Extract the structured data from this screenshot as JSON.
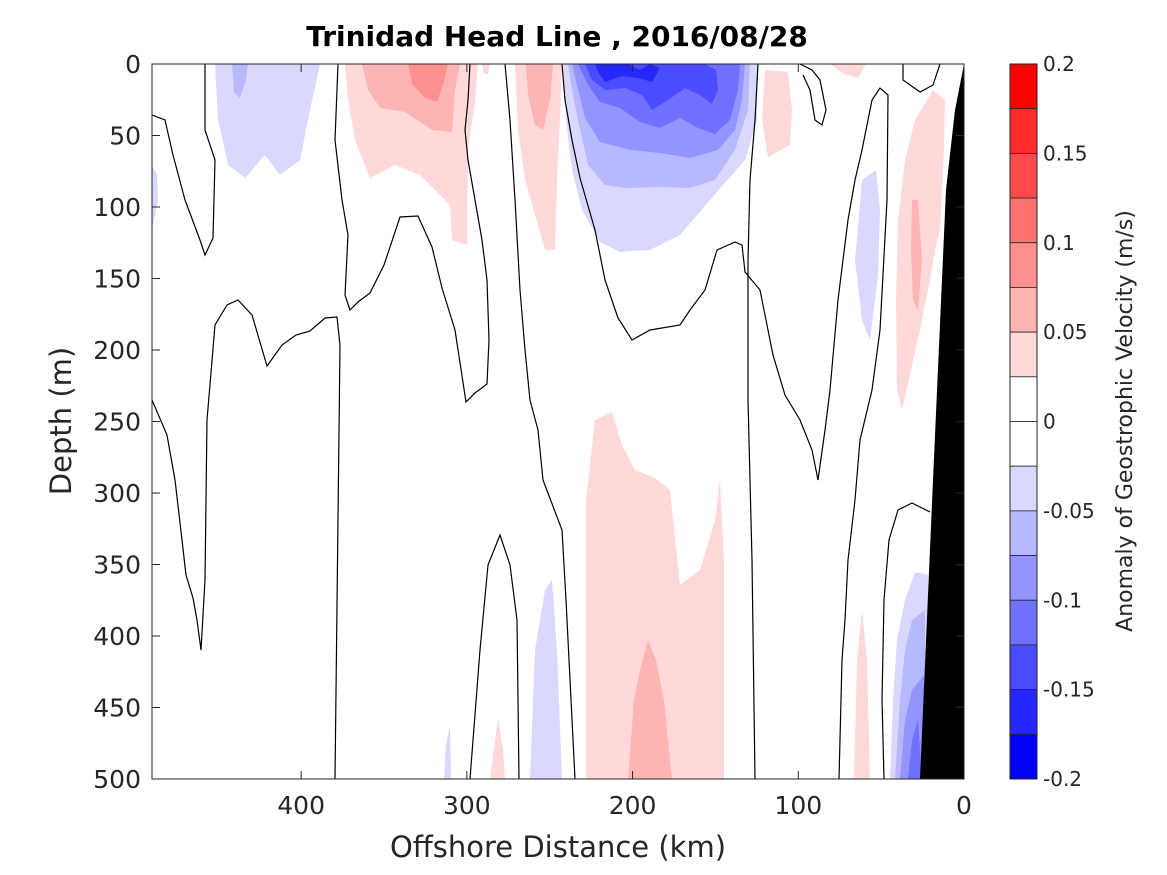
{
  "chart_data": {
    "type": "filled-contour",
    "title": "Trinidad Head Line , 2016/08/28",
    "xlabel": "Offshore Distance (km)",
    "ylabel": "Depth (m)",
    "xlim": [
      490,
      0
    ],
    "ylim": [
      0,
      500
    ],
    "x_reversed": true,
    "y_reversed": true,
    "xticks": [
      400,
      300,
      200,
      100,
      0
    ],
    "yticks": [
      0,
      50,
      100,
      150,
      200,
      250,
      300,
      350,
      400,
      450,
      500
    ],
    "colorbar": {
      "label": "Anomaly of Geostrophic Velocity (m/s)",
      "ticks": [
        0.2,
        0.15,
        0.1,
        0.05,
        0,
        -0.05,
        -0.1,
        -0.15,
        -0.2
      ],
      "tick_labels": [
        "0.2",
        "0.15",
        "0.1",
        "0.05",
        "0",
        "-0.05",
        "-0.1",
        "-0.15",
        "-0.2"
      ],
      "levels": [
        0.2,
        0.175,
        0.15,
        0.125,
        0.1,
        0.075,
        0.05,
        0.025,
        0,
        -0.025,
        -0.05,
        -0.075,
        -0.1,
        -0.125,
        -0.15,
        -0.175,
        -0.2
      ],
      "colors": [
        "#ff0000",
        "#ff2b2b",
        "#ff4b4b",
        "#ff7070",
        "#ff9090",
        "#ffb4b4",
        "#ffd9d9",
        "#ffffff",
        "#ffffff",
        "#d9d9ff",
        "#b8b8ff",
        "#9494ff",
        "#7070ff",
        "#4b4bff",
        "#2626ff",
        "#0000ff"
      ]
    },
    "features": [
      {
        "name": "surface negative core",
        "x_range": [
          240,
          140
        ],
        "depth_range": [
          0,
          130
        ],
        "min_value": -0.15
      },
      {
        "name": "surface positive core",
        "x_range": [
          370,
          280
        ],
        "depth_range": [
          0,
          125
        ],
        "max_value": 0.1
      },
      {
        "name": "deep positive core",
        "x_range": [
          230,
          145
        ],
        "depth_range": [
          225,
          500
        ],
        "max_value": 0.075
      },
      {
        "name": "nearshore deep negative",
        "x_range": [
          50,
          25
        ],
        "depth_range": [
          350,
          500
        ],
        "min_value": -0.15
      },
      {
        "name": "nearshore positive band",
        "x_range": [
          45,
          30
        ],
        "depth_range": [
          50,
          245
        ],
        "max_value": 0.075
      },
      {
        "name": "bathymetry",
        "color": "#000000"
      }
    ]
  }
}
